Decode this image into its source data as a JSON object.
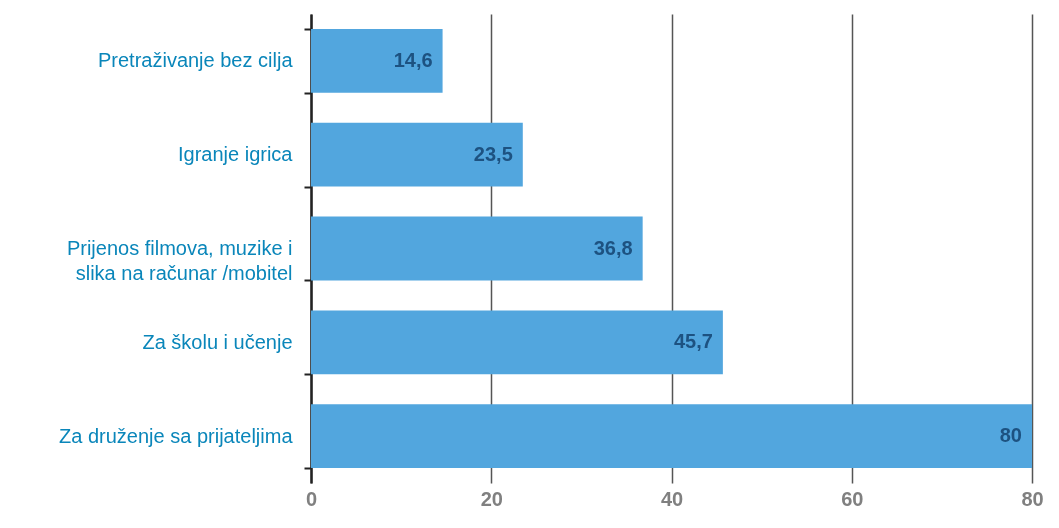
{
  "chart_data": {
    "type": "bar",
    "orientation": "horizontal",
    "categories": [
      "Pretraživanje bez cilja",
      "Igranje igrica",
      "Prijenos filmova, muzike i slika na računar /mobitel",
      "Za školu i učenje",
      "Za druženje sa prijateljima"
    ],
    "values": [
      14.6,
      23.5,
      36.8,
      45.7,
      80
    ],
    "color": "#52a6de",
    "value_labels": [
      "14,6",
      "23,5",
      "36,8",
      "45,7",
      "80"
    ],
    "xlim": [
      0,
      80
    ],
    "xticks": [
      0,
      20,
      40,
      60,
      80
    ],
    "grid": "x"
  }
}
